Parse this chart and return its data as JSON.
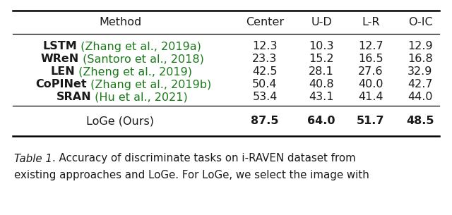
{
  "headers": [
    "Method",
    "Center",
    "U-D",
    "L-R",
    "O-IC"
  ],
  "rows": [
    {
      "method_black": "LSTM",
      "method_green": " (Zhang et al., 2019a)",
      "values": [
        "12.3",
        "10.3",
        "12.7",
        "12.9"
      ]
    },
    {
      "method_black": "WReN",
      "method_green": " (Santoro et al., 2018)",
      "values": [
        "23.3",
        "15.2",
        "16.5",
        "16.8"
      ]
    },
    {
      "method_black": "LEN",
      "method_green": " (Zheng et al., 2019)",
      "values": [
        "42.5",
        "28.1",
        "27.6",
        "32.9"
      ]
    },
    {
      "method_black": "CoPINet",
      "method_green": " (Zhang et al., 2019b)",
      "values": [
        "50.4",
        "40.8",
        "40.0",
        "42.7"
      ]
    },
    {
      "method_black": "SRAN",
      "method_green": " (Hu et al., 2021)",
      "values": [
        "53.4",
        "43.1",
        "41.4",
        "44.0"
      ]
    }
  ],
  "loge_row": {
    "method": "LoGe (Ours)",
    "values": [
      "87.5",
      "64.0",
      "51.7",
      "48.5"
    ]
  },
  "caption_italic": "Table 1",
  "caption_normal": ". Accuracy of discriminate tasks on i-RAVEN dataset from\nexisting approaches and LoGe. For LoGe, we select the image with",
  "green_color": "#1a7a1a",
  "black_color": "#1a1a1a",
  "bg_color": "#ffffff",
  "header_fontsize": 11.5,
  "body_fontsize": 11.5,
  "caption_fontsize": 10.8
}
